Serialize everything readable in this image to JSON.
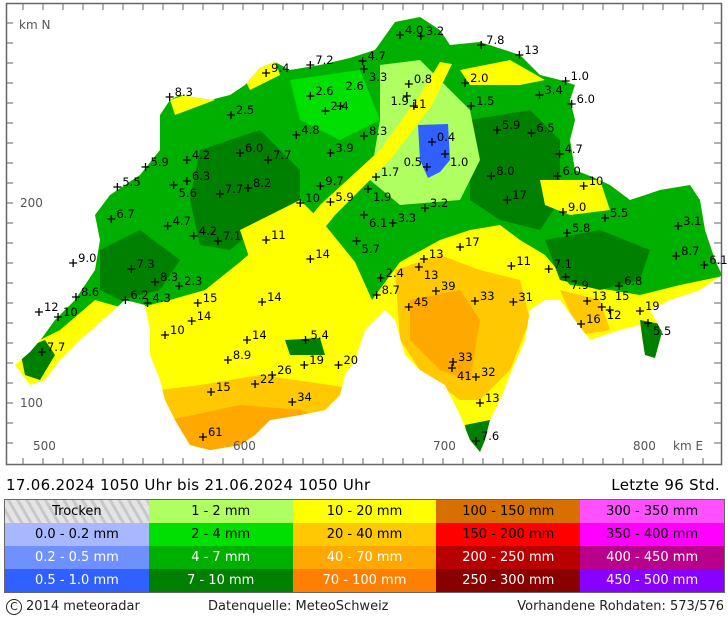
{
  "map": {
    "axis": {
      "y_unit": "km N",
      "y_ticks": [
        "200",
        "100"
      ],
      "x_ticks": [
        "500",
        "600",
        "700",
        "800"
      ],
      "x_unit": "km E"
    },
    "stations": [
      {
        "e": 677.6,
        "n": 284,
        "v": "4.0"
      },
      {
        "e": 688,
        "n": 283.5,
        "v": "3.2"
      },
      {
        "e": 718,
        "n": 279,
        "v": "7.8"
      },
      {
        "e": 737,
        "n": 274,
        "v": "13"
      },
      {
        "e": 659,
        "n": 271,
        "v": "4.7"
      },
      {
        "e": 633,
        "n": 269,
        "v": "7.2"
      },
      {
        "e": 611,
        "n": 265,
        "v": "9.4"
      },
      {
        "e": 659.7,
        "n": 267,
        "v": "3.3"
      },
      {
        "e": 682,
        "n": 259.5,
        "v": "0.8"
      },
      {
        "e": 710,
        "n": 260,
        "v": "2.0"
      },
      {
        "e": 760,
        "n": 261,
        "v": "1.0"
      },
      {
        "e": 747,
        "n": 254,
        "v": "3.4"
      },
      {
        "e": 763,
        "n": 249.5,
        "v": "6.0"
      },
      {
        "e": 563,
        "n": 253,
        "v": "8.3"
      },
      {
        "e": 593.5,
        "n": 244,
        "v": "2.5"
      },
      {
        "e": 633,
        "n": 253.5,
        "v": "2.6"
      },
      {
        "e": 640.5,
        "n": 246,
        "v": "2.4"
      },
      {
        "e": 648,
        "n": 248.5,
        "v": "2.6"
      },
      {
        "e": 681,
        "n": 253.5,
        "v": "11"
      },
      {
        "e": 684.5,
        "n": 248.5,
        "v": "1.9"
      },
      {
        "e": 713,
        "n": 248.5,
        "v": "1.5"
      },
      {
        "e": 626,
        "n": 234,
        "v": "4.8"
      },
      {
        "e": 659.7,
        "n": 233.5,
        "v": "8.3"
      },
      {
        "e": 725.9,
        "n": 236.5,
        "v": "5.9"
      },
      {
        "e": 743,
        "n": 235,
        "v": "6.5"
      },
      {
        "e": 693.5,
        "n": 230.5,
        "v": "0.4"
      },
      {
        "e": 643,
        "n": 225,
        "v": "3.9"
      },
      {
        "e": 598,
        "n": 225,
        "v": "6.0"
      },
      {
        "e": 571.6,
        "n": 221.5,
        "v": "4.2"
      },
      {
        "e": 612,
        "n": 221.5,
        "v": "7.7"
      },
      {
        "e": 551,
        "n": 218,
        "v": "5.9"
      },
      {
        "e": 700,
        "n": 224.5,
        "v": "1.0"
      },
      {
        "e": 691,
        "n": 218,
        "v": "0.5"
      },
      {
        "e": 757,
        "n": 224.5,
        "v": "4.7"
      },
      {
        "e": 571.6,
        "n": 211,
        "v": "6.3"
      },
      {
        "e": 537,
        "n": 208,
        "v": "5.5"
      },
      {
        "e": 565,
        "n": 209,
        "v": "5.6"
      },
      {
        "e": 602,
        "n": 207.5,
        "v": "8.2"
      },
      {
        "e": 588,
        "n": 204.5,
        "v": "7.7"
      },
      {
        "e": 723,
        "n": 213.5,
        "v": "8.0"
      },
      {
        "e": 756,
        "n": 213.5,
        "v": "6.0"
      },
      {
        "e": 769,
        "n": 208.5,
        "v": "10"
      },
      {
        "e": 665.7,
        "n": 213,
        "v": "1.7"
      },
      {
        "e": 661.7,
        "n": 207,
        "v": "1.9"
      },
      {
        "e": 638,
        "n": 208.5,
        "v": "9.7"
      },
      {
        "e": 628,
        "n": 200,
        "v": "10"
      },
      {
        "e": 643,
        "n": 200.5,
        "v": "5.9"
      },
      {
        "e": 731,
        "n": 201.5,
        "v": "17"
      },
      {
        "e": 690,
        "n": 197.5,
        "v": "3.2"
      },
      {
        "e": 758.7,
        "n": 195.5,
        "v": "9.0"
      },
      {
        "e": 779.6,
        "n": 192.5,
        "v": "5.5"
      },
      {
        "e": 534,
        "n": 192,
        "v": "6.7"
      },
      {
        "e": 659.7,
        "n": 194,
        "v": "6.1"
      },
      {
        "e": 674,
        "n": 190,
        "v": "3.3"
      },
      {
        "e": 562,
        "n": 188.5,
        "v": "4.7"
      },
      {
        "e": 575,
        "n": 183.5,
        "v": "4.2"
      },
      {
        "e": 587,
        "n": 181,
        "v": "7.1"
      },
      {
        "e": 611,
        "n": 181.5,
        "v": "11"
      },
      {
        "e": 816,
        "n": 188.5,
        "v": "3.1"
      },
      {
        "e": 760.7,
        "n": 185,
        "v": "5.8"
      },
      {
        "e": 656,
        "n": 181,
        "v": "5.7"
      },
      {
        "e": 707.5,
        "n": 178,
        "v": "17"
      },
      {
        "e": 633,
        "n": 172,
        "v": "14"
      },
      {
        "e": 515,
        "n": 170,
        "v": "9.0"
      },
      {
        "e": 689.5,
        "n": 172,
        "v": "13"
      },
      {
        "e": 687,
        "n": 168,
        "v": "13"
      },
      {
        "e": 733,
        "n": 168.5,
        "v": "11"
      },
      {
        "e": 751.6,
        "n": 167,
        "v": "7.1"
      },
      {
        "e": 815,
        "n": 173.5,
        "v": "8.7"
      },
      {
        "e": 829,
        "n": 169,
        "v": "6.1"
      },
      {
        "e": 544,
        "n": 167,
        "v": "7.3"
      },
      {
        "e": 668,
        "n": 162.5,
        "v": "2.4"
      },
      {
        "e": 760,
        "n": 163,
        "v": "7.9"
      },
      {
        "e": 555.7,
        "n": 160.5,
        "v": "8.3"
      },
      {
        "e": 567.7,
        "n": 158.5,
        "v": "2.3"
      },
      {
        "e": 786.6,
        "n": 158.5,
        "v": "6.8"
      },
      {
        "e": 666,
        "n": 154,
        "v": "8.7"
      },
      {
        "e": 695.5,
        "n": 156,
        "v": "39"
      },
      {
        "e": 516.4,
        "n": 153,
        "v": "8.6"
      },
      {
        "e": 541,
        "n": 151.5,
        "v": "6.2"
      },
      {
        "e": 609,
        "n": 150.5,
        "v": "14"
      },
      {
        "e": 682,
        "n": 148,
        "v": "45"
      },
      {
        "e": 714.9,
        "n": 151,
        "v": "33"
      },
      {
        "e": 734,
        "n": 150.5,
        "v": "31"
      },
      {
        "e": 552,
        "n": 150,
        "v": "4.3"
      },
      {
        "e": 577,
        "n": 150,
        "v": "15"
      },
      {
        "e": 770.7,
        "n": 151,
        "v": "13"
      },
      {
        "e": 778,
        "n": 148,
        "v": "12"
      },
      {
        "e": 782,
        "n": 146.5,
        "v": "15"
      },
      {
        "e": 797,
        "n": 146,
        "v": "19"
      },
      {
        "e": 801,
        "n": 140,
        "v": "5.5"
      },
      {
        "e": 767.7,
        "n": 139.5,
        "v": "16"
      },
      {
        "e": 498,
        "n": 145.5,
        "v": "12"
      },
      {
        "e": 507.5,
        "n": 143,
        "v": "10"
      },
      {
        "e": 574,
        "n": 141,
        "v": "14"
      },
      {
        "e": 560.7,
        "n": 134,
        "v": "10"
      },
      {
        "e": 601.5,
        "n": 131.5,
        "v": "14"
      },
      {
        "e": 630.6,
        "n": 131.5,
        "v": "5.4"
      },
      {
        "e": 499.5,
        "n": 125.5,
        "v": "7.7"
      },
      {
        "e": 592,
        "n": 121.5,
        "v": "8.9"
      },
      {
        "e": 704,
        "n": 120.5,
        "v": "33"
      },
      {
        "e": 703.5,
        "n": 117.5,
        "v": "41"
      },
      {
        "e": 715.4,
        "n": 113,
        "v": "32"
      },
      {
        "e": 630,
        "n": 119,
        "v": "19"
      },
      {
        "e": 647,
        "n": 119,
        "v": "20"
      },
      {
        "e": 614,
        "n": 114,
        "v": "26"
      },
      {
        "e": 605.5,
        "n": 109.5,
        "v": "22"
      },
      {
        "e": 583.6,
        "n": 105.5,
        "v": "15"
      },
      {
        "e": 624,
        "n": 100.5,
        "v": "34"
      },
      {
        "e": 717.4,
        "n": 100,
        "v": "13"
      },
      {
        "e": 579.6,
        "n": 83,
        "v": "61"
      },
      {
        "e": 715.4,
        "n": 81,
        "v": "7.6"
      }
    ]
  },
  "header": {
    "period": "17.06.2024  1050 Uhr   bis   21.06.2024  1050 Uhr",
    "window": "Letzte 96 Std."
  },
  "legend": [
    {
      "label": "Trocken",
      "bg": "#d8d8d8",
      "fg": "#000"
    },
    {
      "label": "0.0 - 0.2 mm",
      "bg": "#a8b8ff",
      "fg": "#000"
    },
    {
      "label": "0.2 - 0.5 mm",
      "bg": "#7090ff",
      "fg": "#fff"
    },
    {
      "label": "0.5 - 1.0 mm",
      "bg": "#3060ff",
      "fg": "#fff"
    },
    {
      "label": "1 - 2 mm",
      "bg": "#b0ff60",
      "fg": "#000"
    },
    {
      "label": "2 - 4 mm",
      "bg": "#00e000",
      "fg": "#000"
    },
    {
      "label": "4 - 7 mm",
      "bg": "#00b000",
      "fg": "#fff"
    },
    {
      "label": "7 - 10 mm",
      "bg": "#008000",
      "fg": "#fff"
    },
    {
      "label": "10 - 20 mm",
      "bg": "#ffff00",
      "fg": "#000"
    },
    {
      "label": "20 - 40 mm",
      "bg": "#ffc800",
      "fg": "#000"
    },
    {
      "label": "40 - 70 mm",
      "bg": "#ffa800",
      "fg": "#fff"
    },
    {
      "label": "70 - 100 mm",
      "bg": "#ff8000",
      "fg": "#fff"
    },
    {
      "label": "100 - 150 mm",
      "bg": "#d87000",
      "fg": "#000"
    },
    {
      "label": "150 - 200 mm",
      "bg": "#ff0000",
      "fg": "#000"
    },
    {
      "label": "200 - 250 mm",
      "bg": "#b80000",
      "fg": "#fff"
    },
    {
      "label": "250 - 300 mm",
      "bg": "#880000",
      "fg": "#fff"
    },
    {
      "label": "300 - 350 mm",
      "bg": "#ff50ff",
      "fg": "#000"
    },
    {
      "label": "350 - 400 mm",
      "bg": "#ff00ff",
      "fg": "#000"
    },
    {
      "label": "400 - 450 mm",
      "bg": "#b8008c",
      "fg": "#fff"
    },
    {
      "label": "450 - 500 mm",
      "bg": "#8800ff",
      "fg": "#fff"
    }
  ],
  "footer": {
    "copyright_symbol": "C",
    "copyright": "2014  meteoradar",
    "source": "Datenquelle: MeteoSchweiz",
    "raw": "Vorhandene Rohdaten: 573/576"
  }
}
